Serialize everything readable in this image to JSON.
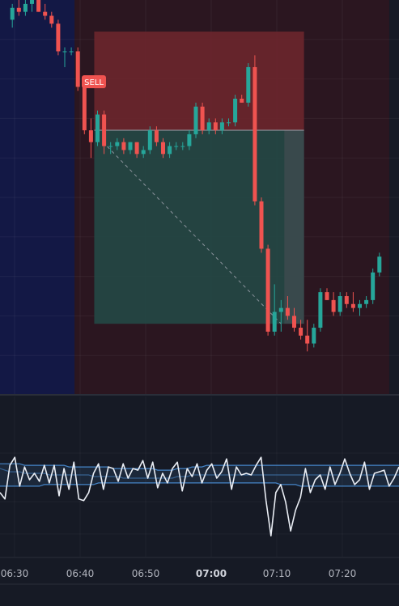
{
  "signal": {
    "label": "SELL"
  },
  "colors": {
    "background": "#161a25",
    "session_a": "#131845",
    "session_b": "#2b1620",
    "up": "#26a69a",
    "down": "#ef5350",
    "stop_zone": "#6b262c",
    "target_zone": "#234845",
    "oscillator_line": "#e9edf4",
    "bands": "#4a90d9"
  },
  "chart_data": [
    {
      "type": "candlestick",
      "title": "",
      "xlabel": "",
      "ylabel": "",
      "grid": true,
      "x_ticks": [
        "06:30",
        "06:40",
        "06:50",
        "07:00",
        "07:10",
        "07:20"
      ],
      "bold_tick": "07:00",
      "ylim": [
        0,
        100
      ],
      "candles": [
        {
          "o": 95,
          "h": 99,
          "l": 93,
          "c": 98
        },
        {
          "o": 98,
          "h": 100,
          "l": 96,
          "c": 97
        },
        {
          "o": 97,
          "h": 100,
          "l": 96,
          "c": 99
        },
        {
          "o": 99,
          "h": 101,
          "l": 97,
          "c": 100
        },
        {
          "o": 100,
          "h": 101,
          "l": 97,
          "c": 97
        },
        {
          "o": 97,
          "h": 99,
          "l": 95,
          "c": 96
        },
        {
          "o": 96,
          "h": 97,
          "l": 93,
          "c": 94
        },
        {
          "o": 94,
          "h": 95,
          "l": 86,
          "c": 87
        },
        {
          "o": 87,
          "h": 88,
          "l": 83,
          "c": 87
        },
        {
          "o": 87,
          "h": 88,
          "l": 86,
          "c": 87
        },
        {
          "o": 87,
          "h": 88,
          "l": 77,
          "c": 78
        },
        {
          "o": 78,
          "h": 80,
          "l": 66,
          "c": 67
        },
        {
          "o": 67,
          "h": 70,
          "l": 60,
          "c": 64
        },
        {
          "o": 64,
          "h": 72,
          "l": 63,
          "c": 71
        },
        {
          "o": 71,
          "h": 72,
          "l": 61,
          "c": 63
        },
        {
          "o": 63,
          "h": 64,
          "l": 61,
          "c": 63
        },
        {
          "o": 63,
          "h": 65,
          "l": 62,
          "c": 64
        },
        {
          "o": 64,
          "h": 65,
          "l": 61,
          "c": 62
        },
        {
          "o": 62,
          "h": 64,
          "l": 61,
          "c": 64
        },
        {
          "o": 64,
          "h": 64,
          "l": 60,
          "c": 61
        },
        {
          "o": 61,
          "h": 63,
          "l": 60,
          "c": 62
        },
        {
          "o": 62,
          "h": 68,
          "l": 61,
          "c": 67
        },
        {
          "o": 67,
          "h": 68,
          "l": 63,
          "c": 64
        },
        {
          "o": 64,
          "h": 65,
          "l": 60,
          "c": 61
        },
        {
          "o": 61,
          "h": 64,
          "l": 60,
          "c": 63
        },
        {
          "o": 63,
          "h": 64,
          "l": 62,
          "c": 63
        },
        {
          "o": 63,
          "h": 64,
          "l": 62,
          "c": 63
        },
        {
          "o": 63,
          "h": 67,
          "l": 62,
          "c": 66
        },
        {
          "o": 66,
          "h": 74,
          "l": 65,
          "c": 73
        },
        {
          "o": 73,
          "h": 74,
          "l": 66,
          "c": 67
        },
        {
          "o": 67,
          "h": 70,
          "l": 66,
          "c": 69
        },
        {
          "o": 69,
          "h": 70,
          "l": 66,
          "c": 67
        },
        {
          "o": 67,
          "h": 70,
          "l": 66,
          "c": 69
        },
        {
          "o": 69,
          "h": 70,
          "l": 68,
          "c": 69
        },
        {
          "o": 69,
          "h": 76,
          "l": 68,
          "c": 75
        },
        {
          "o": 75,
          "h": 76,
          "l": 74,
          "c": 74
        },
        {
          "o": 74,
          "h": 84,
          "l": 73,
          "c": 83
        },
        {
          "o": 83,
          "h": 86,
          "l": 48,
          "c": 49
        },
        {
          "o": 49,
          "h": 50,
          "l": 36,
          "c": 37
        },
        {
          "o": 37,
          "h": 38,
          "l": 15,
          "c": 16
        },
        {
          "o": 16,
          "h": 28,
          "l": 15,
          "c": 21
        },
        {
          "o": 21,
          "h": 24,
          "l": 16,
          "c": 22
        },
        {
          "o": 22,
          "h": 25,
          "l": 19,
          "c": 20
        },
        {
          "o": 20,
          "h": 22,
          "l": 16,
          "c": 17
        },
        {
          "o": 17,
          "h": 19,
          "l": 14,
          "c": 15
        },
        {
          "o": 15,
          "h": 19,
          "l": 11,
          "c": 13
        },
        {
          "o": 13,
          "h": 18,
          "l": 12,
          "c": 17
        },
        {
          "o": 17,
          "h": 27,
          "l": 16,
          "c": 26
        },
        {
          "o": 26,
          "h": 27,
          "l": 24,
          "c": 24
        },
        {
          "o": 24,
          "h": 26,
          "l": 20,
          "c": 21
        },
        {
          "o": 21,
          "h": 26,
          "l": 20,
          "c": 25
        },
        {
          "o": 25,
          "h": 26,
          "l": 22,
          "c": 23
        },
        {
          "o": 23,
          "h": 26,
          "l": 21,
          "c": 22
        },
        {
          "o": 22,
          "h": 24,
          "l": 20,
          "c": 23
        },
        {
          "o": 23,
          "h": 25,
          "l": 22,
          "c": 24
        },
        {
          "o": 24,
          "h": 32,
          "l": 23,
          "c": 31
        },
        {
          "o": 31,
          "h": 36,
          "l": 30,
          "c": 35
        }
      ],
      "sessions": [
        {
          "from": -2,
          "to": 10
        },
        {
          "from": 10,
          "to": 58
        }
      ],
      "trade": {
        "entry_index": 10,
        "entry_price": 78,
        "position_start": 12.5,
        "position_end": 44.5,
        "open_price": 67,
        "stop_price": 92,
        "target_price": 18,
        "close_index": 41,
        "close_price": 18
      }
    },
    {
      "type": "line",
      "title": "",
      "xlabel": "",
      "ylabel": "",
      "ylim": [
        0,
        100
      ],
      "series": [
        {
          "values": [
            40,
            36,
            57,
            62,
            44,
            56,
            48,
            52,
            47,
            57,
            46,
            57,
            38,
            55,
            42,
            59,
            36,
            35,
            40,
            52,
            58,
            42,
            56,
            55,
            47,
            58,
            49,
            55,
            54,
            60,
            49,
            59,
            43,
            52,
            46,
            55,
            59,
            41,
            55,
            50,
            58,
            46,
            54,
            58,
            49,
            53,
            61,
            42,
            56,
            51,
            52,
            51,
            57,
            62,
            35,
            13,
            40,
            45,
            34,
            16,
            29,
            37,
            55,
            40,
            48,
            51,
            42,
            56,
            45,
            52,
            61,
            52,
            45,
            48,
            59,
            42,
            52,
            53,
            54,
            44,
            49,
            56
          ]
        }
      ],
      "bands": [
        {
          "values": [
            58,
            58,
            58,
            58,
            58,
            57,
            57,
            57,
            57,
            57,
            57,
            57,
            57,
            57,
            56,
            56,
            56,
            56,
            56,
            56,
            56,
            56,
            56,
            55,
            55,
            55,
            55,
            55,
            55,
            55,
            55,
            55,
            54,
            54,
            54,
            54,
            55,
            55,
            55,
            56,
            56,
            56,
            57,
            57,
            57,
            57,
            57,
            57,
            57,
            57,
            57,
            57,
            57,
            57,
            57,
            57,
            57,
            57,
            57,
            57,
            57,
            57,
            57,
            57,
            57,
            57,
            57,
            57,
            57,
            57,
            57,
            57,
            57,
            57,
            57,
            57,
            57,
            57,
            57,
            57,
            57,
            57
          ]
        },
        {
          "values": [
            55,
            54,
            53,
            53,
            53,
            52,
            52,
            52,
            52,
            52,
            51,
            51,
            51,
            51,
            51,
            51,
            51,
            51,
            51,
            50,
            50,
            50,
            50,
            50,
            50,
            49,
            49,
            49,
            49,
            49,
            49,
            49,
            49,
            49,
            49,
            49,
            50,
            50,
            50,
            51,
            51,
            51,
            51,
            51,
            51,
            51,
            51,
            51,
            51,
            51,
            51,
            51,
            51,
            51,
            51,
            51,
            51,
            51,
            51,
            51,
            51,
            51,
            51,
            51,
            51,
            51,
            51,
            51,
            51,
            51,
            51,
            51,
            51,
            51,
            51,
            51,
            51,
            51,
            51,
            51,
            51,
            51
          ]
        },
        {
          "values": [
            44,
            44,
            44,
            44,
            44,
            44,
            44,
            44,
            44,
            45,
            45,
            45,
            45,
            45,
            45,
            45,
            45,
            45,
            45,
            45,
            46,
            46,
            46,
            46,
            46,
            46,
            46,
            46,
            46,
            46,
            46,
            46,
            46,
            46,
            46,
            46,
            46,
            46,
            46,
            46,
            46,
            46,
            46,
            46,
            46,
            46,
            46,
            46,
            46,
            46,
            46,
            46,
            46,
            46,
            46,
            46,
            46,
            45,
            45,
            45,
            45,
            44,
            44,
            44,
            44,
            44,
            44,
            44,
            44,
            44,
            44,
            44,
            44,
            44,
            44,
            44,
            44,
            44,
            44,
            44,
            44,
            44
          ]
        }
      ]
    }
  ]
}
